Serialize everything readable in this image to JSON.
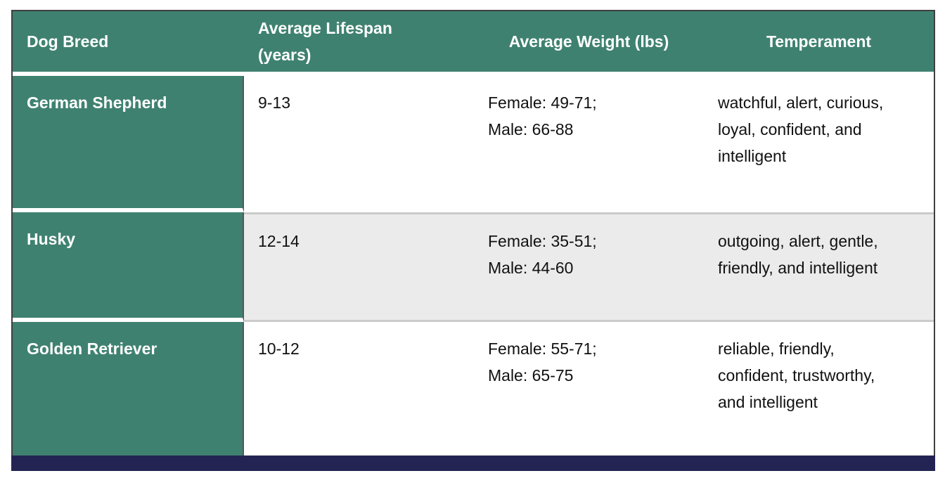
{
  "table": {
    "columns": [
      {
        "label": "Dog Breed"
      },
      {
        "label": "Average Lifespan (years)"
      },
      {
        "label": "Average Weight (lbs)"
      },
      {
        "label": "Temperament"
      }
    ],
    "rows": [
      {
        "breed": "German Shepherd",
        "lifespan": "9-13",
        "weight_female": "Female: 49-71;",
        "weight_male": "Male: 66-88",
        "temperament": "watchful, alert, curious, loyal, confident, and intelligent"
      },
      {
        "breed": "Husky",
        "lifespan": "12-14",
        "weight_female": "Female: 35-51;",
        "weight_male": "Male: 44-60",
        "temperament": "outgoing, alert, gentle, friendly, and intelligent"
      },
      {
        "breed": "Golden Retriever",
        "lifespan": "10-12",
        "weight_female": "Female: 55-71;",
        "weight_male": "Male: 65-75",
        "temperament": "reliable, friendly, confident, trustworthy, and intelligent"
      }
    ]
  },
  "colors": {
    "header_green": "#3F8170",
    "alt_row_gray": "#EBEBEB",
    "row_divider": "#CBCBCB",
    "outer_border": "#3F3F3F",
    "bottom_bar_navy": "#232453",
    "header_text": "#FFFFFF",
    "body_text": "#111111"
  }
}
